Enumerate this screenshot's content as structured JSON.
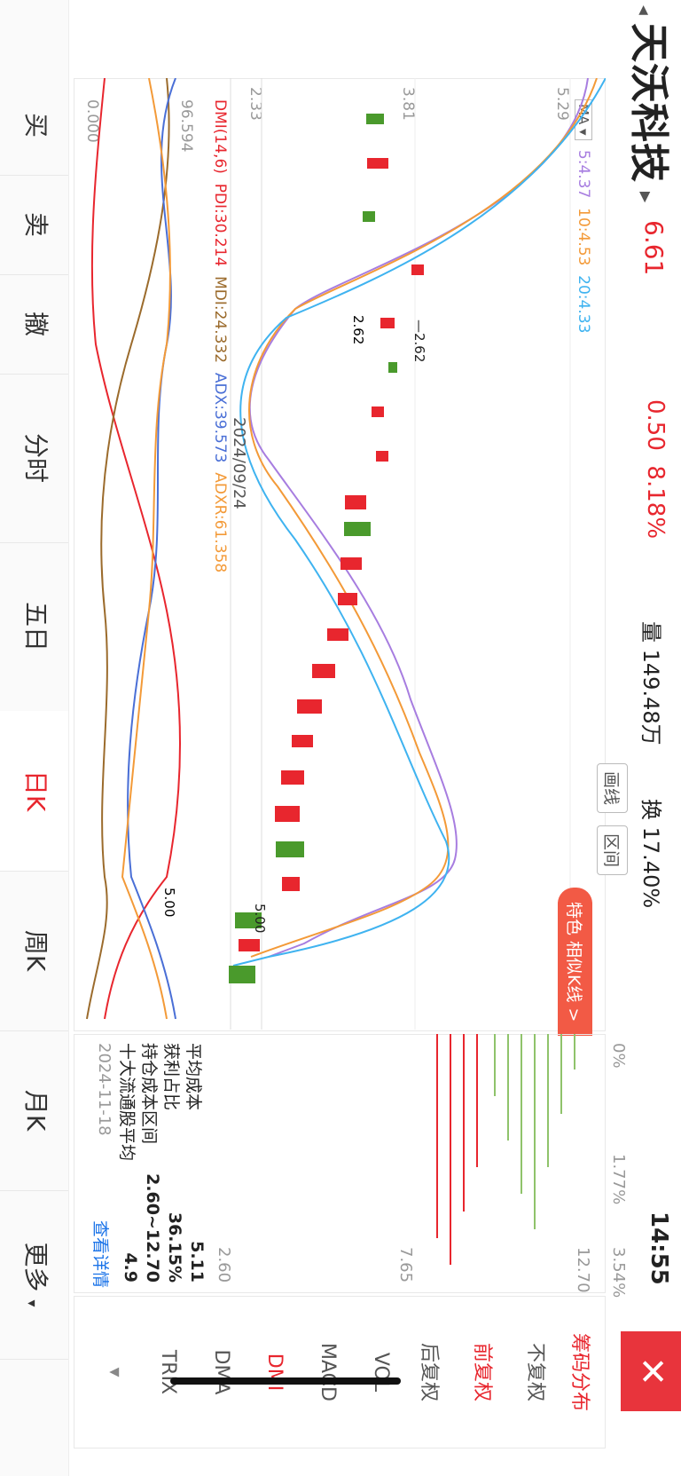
{
  "header": {
    "stock_name": "天沃科技",
    "price": "6.61",
    "change": "0.50",
    "change_pct": "8.18%",
    "volume_label": "量",
    "volume": "149.48万",
    "turnover_label": "换",
    "turnover": "17.40%",
    "time": "14:55"
  },
  "indicator_select": "MA",
  "ma_legend": [
    {
      "label": "5:4.37",
      "color": "#a77de0"
    },
    {
      "label": "10:4.53",
      "color": "#f39a38"
    },
    {
      "label": "20:4.33",
      "color": "#3fb3f0"
    }
  ],
  "price_axis": [
    "5.29",
    "3.81",
    "2.33"
  ],
  "tools": {
    "draw": "画线",
    "range": "区间",
    "feature": "特色 相似K线 >"
  },
  "annotations": {
    "low": "2.62",
    "high": "5.00",
    "date": "2024/09/24"
  },
  "dmi_legend": {
    "name": "DMI(14,6)",
    "pdi": "PDI:30.214",
    "mdi": "MDI:24.332",
    "adx": "ADX:39.573",
    "adxr": "ADXR:61.358"
  },
  "dmi_axis": {
    "top": "96.594",
    "bottom": "0.000"
  },
  "chip": {
    "axis_pct": [
      "0%",
      "1.77%",
      "3.54%"
    ],
    "axis_price": [
      "12.70",
      "7.65",
      "2.60"
    ],
    "avg_cost_label": "平均成本",
    "avg_cost": "5.11",
    "profit_label": "获利占比",
    "profit": "36.15%",
    "range_label": "持仓成本区间",
    "range": "2.60~12.70",
    "top10_label": "十大流通股平均",
    "top10": "4.9",
    "date": "2024-11-18",
    "details": "查看详情"
  },
  "side_menu": {
    "title": "筹码分布",
    "items": [
      "不复权",
      "前复权",
      "后复权",
      "VOL",
      "MACD",
      "DMI",
      "DMA",
      "TRIX"
    ],
    "active": "DMI"
  },
  "bottom_tabs": [
    "买",
    "卖",
    "撤",
    "分时",
    "五日",
    "日K",
    "周K",
    "月K",
    "更多"
  ],
  "colors": {
    "up": "#e8262e",
    "down": "#4a9a2c",
    "accent": "#e8262e"
  }
}
